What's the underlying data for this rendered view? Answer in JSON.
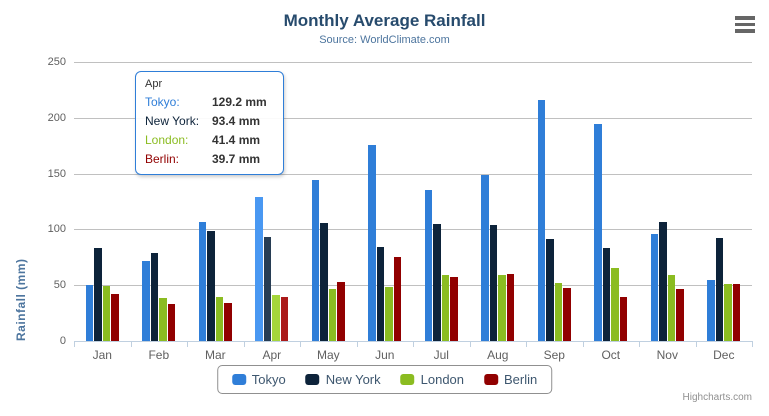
{
  "chart_data": {
    "type": "bar",
    "orientation": "vertical",
    "title": "Monthly Average Rainfall",
    "subtitle": "Source: WorldClimate.com",
    "xlabel": "",
    "ylabel": "Rainfall (mm)",
    "categories": [
      "Jan",
      "Feb",
      "Mar",
      "Apr",
      "May",
      "Jun",
      "Jul",
      "Aug",
      "Sep",
      "Oct",
      "Nov",
      "Dec"
    ],
    "series": [
      {
        "name": "Tokyo",
        "color": "#2f7ed8",
        "values": [
          49.9,
          71.5,
          106.4,
          129.2,
          144.0,
          176.0,
          135.6,
          148.5,
          216.4,
          194.1,
          95.6,
          54.4
        ]
      },
      {
        "name": "New York",
        "color": "#0d233a",
        "values": [
          83.6,
          78.8,
          98.5,
          93.4,
          106.0,
          84.5,
          105.0,
          104.3,
          91.2,
          83.5,
          106.6,
          92.3
        ]
      },
      {
        "name": "London",
        "color": "#8bbc21",
        "values": [
          48.9,
          38.8,
          39.3,
          41.4,
          47.0,
          48.3,
          59.0,
          59.6,
          52.4,
          65.2,
          59.3,
          51.2
        ]
      },
      {
        "name": "Berlin",
        "color": "#910000",
        "values": [
          42.4,
          33.2,
          34.5,
          39.7,
          52.6,
          75.5,
          57.4,
          60.4,
          47.6,
          39.1,
          46.8,
          51.1
        ]
      }
    ],
    "ylim": [
      0,
      250
    ],
    "yticks": [
      0,
      50,
      100,
      150,
      200,
      250
    ],
    "grid": true,
    "legend_position": "bottom-center",
    "hover_category": "Apr",
    "hover_category_index": 3
  },
  "tooltip": {
    "header": "Apr",
    "border_color": "#2f7ed8",
    "rows": [
      {
        "label": "Tokyo:",
        "value": "129.2 mm",
        "color": "#2f7ed8"
      },
      {
        "label": "New York:",
        "value": "93.4 mm",
        "color": "#0d233a"
      },
      {
        "label": "London:",
        "value": "41.4 mm",
        "color": "#8bbc21"
      },
      {
        "label": "Berlin:",
        "value": "39.7 mm",
        "color": "#910000"
      }
    ]
  },
  "export_menu": {
    "icon": "hamburger-menu-icon"
  },
  "credits": {
    "label": "Highcharts.com"
  },
  "colors": {
    "title": "#274b6d",
    "subtitle": "#4d759e",
    "axis_title": "#4d759e",
    "tick_label": "#606060",
    "gridline": "#C0C0C0",
    "axis_line": "#C0D0E0",
    "legend_border": "#909090",
    "legend_text": "#3E576F",
    "tooltip_border": "#2f7ed8",
    "menu_icon": "#666666",
    "credits_text": "#909090"
  }
}
